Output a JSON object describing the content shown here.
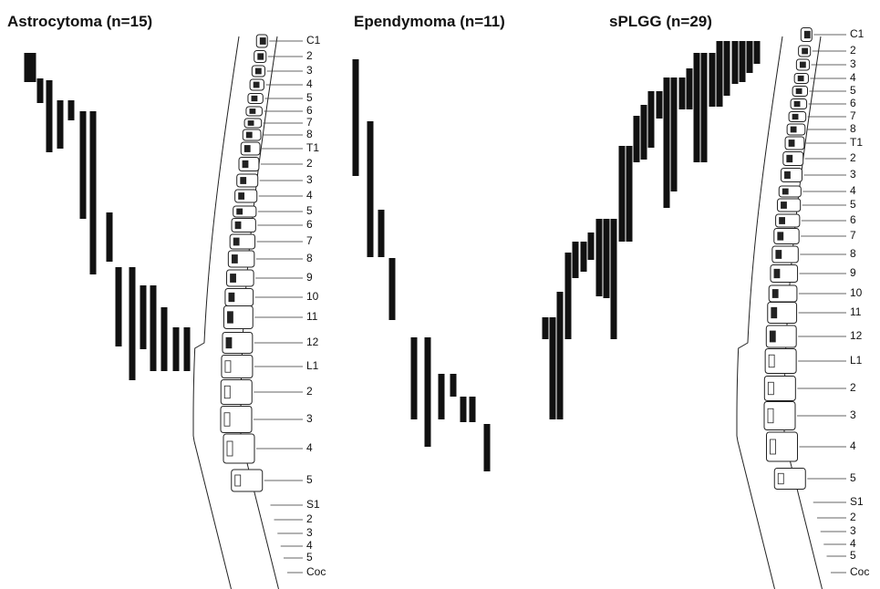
{
  "panels": [
    {
      "title": "Astrocytoma (n=15)"
    },
    {
      "title": "Ependymoma (n=11)"
    },
    {
      "title": "sPLGG  (n=29)"
    }
  ],
  "spines": [
    {
      "levels": [
        "C1",
        "2",
        "3",
        "4",
        "5",
        "6",
        "7",
        "8",
        "T1",
        "2",
        "3",
        "4",
        "5",
        "6",
        "7",
        "8",
        "9",
        "10",
        "11",
        "12",
        "L1",
        "2",
        "3",
        "4",
        "5",
        "S1",
        "2",
        "3",
        "4",
        "5",
        "Coc"
      ]
    },
    {
      "levels": [
        "C1",
        "2",
        "3",
        "4",
        "5",
        "6",
        "7",
        "8",
        "T1",
        "2",
        "3",
        "4",
        "5",
        "6",
        "7",
        "8",
        "9",
        "10",
        "11",
        "12",
        "L1",
        "2",
        "3",
        "4",
        "5",
        "S1",
        "2",
        "3",
        "4",
        "5",
        "Coc"
      ]
    }
  ]
}
